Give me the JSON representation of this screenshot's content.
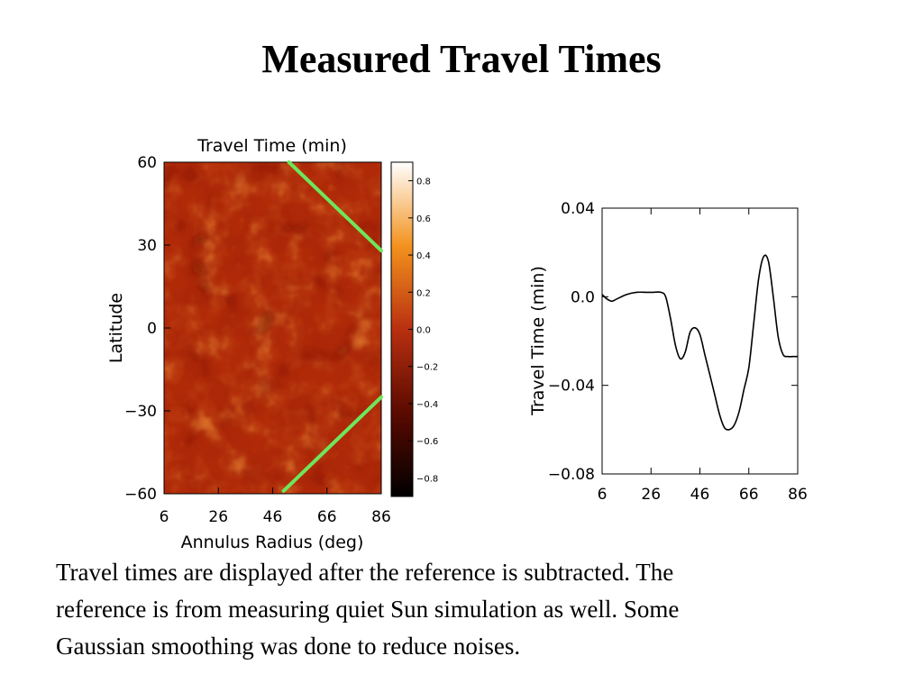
{
  "slide": {
    "title": "Measured Travel Times",
    "caption_lines": [
      "Travel times are displayed after the reference is subtracted. The",
      "reference is from measuring quiet Sun simulation as well. Some",
      "Gaussian smoothing was done to reduce noises."
    ]
  },
  "colors": {
    "heatmap_base": "#b02a08",
    "marker_lines": "#6ee65a",
    "line_series": "#000000"
  },
  "chart_data": [
    {
      "type": "heatmap",
      "title": "Travel Time (min)",
      "xlabel": "Annulus Radius (deg)",
      "ylabel": "Latitude",
      "xlim": [
        6,
        86
      ],
      "ylim": [
        -60,
        60
      ],
      "x_ticks": [
        6,
        26,
        46,
        66,
        86
      ],
      "y_ticks": [
        60,
        30,
        0,
        -30,
        -60
      ],
      "y_tick_labels": [
        "60",
        "30",
        "0",
        "−30",
        "−60"
      ],
      "colorbar": {
        "range": [
          -0.9,
          0.9
        ],
        "ticks": [
          0.8,
          0.6,
          0.4,
          0.2,
          0.0,
          -0.2,
          -0.4,
          -0.6,
          -0.8
        ],
        "tick_labels": [
          "0.8",
          "0.6",
          "0.4",
          "0.2",
          "0.0",
          "−0.2",
          "−0.4",
          "−0.6",
          "−0.8"
        ]
      },
      "marker_lines": [
        {
          "points": [
            [
              52,
              60
            ],
            [
              86,
              28
            ]
          ]
        },
        {
          "points": [
            [
              50,
              -59
            ],
            [
              86,
              -25
            ]
          ]
        }
      ]
    },
    {
      "type": "line",
      "xlabel": "",
      "ylabel": "Travel Time (min)",
      "xlim": [
        6,
        86
      ],
      "ylim": [
        -0.08,
        0.04
      ],
      "x_ticks": [
        6,
        26,
        46,
        66,
        86
      ],
      "y_ticks": [
        0.04,
        0.0,
        -0.04,
        -0.08
      ],
      "y_tick_labels": [
        "0.04",
        "0.0",
        "−0.04",
        "−0.08"
      ],
      "series": [
        {
          "x": [
            6,
            8,
            10,
            12,
            16,
            20,
            24,
            27,
            30,
            32,
            34,
            36,
            38,
            40,
            42,
            44,
            46,
            48,
            50,
            52,
            54,
            56,
            58,
            60,
            62,
            64,
            66,
            68,
            70,
            72,
            74,
            76,
            78,
            80,
            82,
            84,
            86
          ],
          "y": [
            0.001,
            -0.001,
            -0.002,
            -0.001,
            0.001,
            0.002,
            0.002,
            0.002,
            0.002,
            0.0,
            -0.01,
            -0.022,
            -0.028,
            -0.025,
            -0.016,
            -0.014,
            -0.017,
            -0.026,
            -0.035,
            -0.044,
            -0.053,
            -0.059,
            -0.06,
            -0.058,
            -0.052,
            -0.042,
            -0.032,
            -0.012,
            0.008,
            0.018,
            0.016,
            0.0,
            -0.018,
            -0.026,
            -0.027,
            -0.027,
            -0.027
          ]
        }
      ]
    }
  ]
}
